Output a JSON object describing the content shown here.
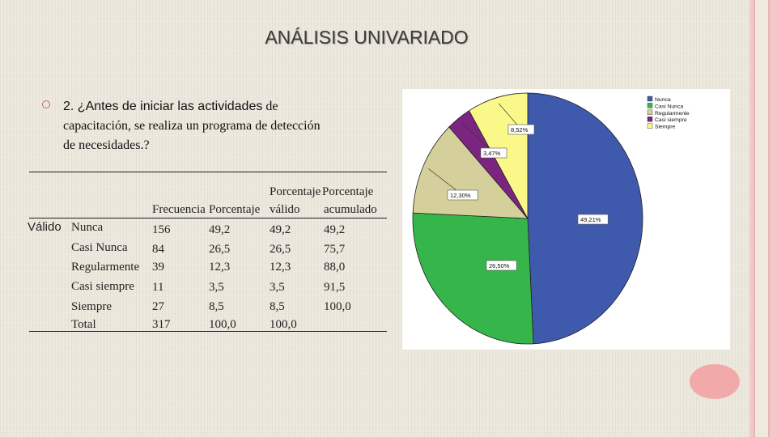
{
  "slide": {
    "title": "ANÁLISIS UNIVARIADO",
    "question_sans": "2. ¿Antes de iniciar las actividades",
    "question_serif_1": " de",
    "question_line2": "capacitación, se realiza un programa de detección",
    "question_line3": "de necesidades.?"
  },
  "table": {
    "headers": {
      "freq": "Frecuencia",
      "pct": "Porcentaje",
      "valid_1": "Porcentaje",
      "valid_2": "válido",
      "cum_1": "Porcentaje",
      "cum_2": "acumulado"
    },
    "group_label": "Válido",
    "rows": [
      {
        "label": "Nunca",
        "freq": "156",
        "pct": "49,2",
        "valid": "49,2",
        "cum": "49,2"
      },
      {
        "label": "Casi Nunca",
        "freq": "84",
        "pct": "26,5",
        "valid": "26,5",
        "cum": "75,7"
      },
      {
        "label": "Regularmente",
        "freq": "39",
        "pct": "12,3",
        "valid": "12,3",
        "cum": "88,0"
      },
      {
        "label": "Casi siempre",
        "freq": "11",
        "pct": "3,5",
        "valid": "3,5",
        "cum": "91,5"
      },
      {
        "label": "Siempre",
        "freq": "27",
        "pct": "8,5",
        "valid": "8,5",
        "cum": "100,0"
      },
      {
        "label": "Total",
        "freq": "317",
        "pct": "100,0",
        "valid": "100,0",
        "cum": ""
      }
    ]
  },
  "chart_data": {
    "type": "pie",
    "categories": [
      "Nunca",
      "Casi Nunca",
      "Regularmente",
      "Casi siempre",
      "Siempre"
    ],
    "values": [
      49.21,
      26.5,
      12.3,
      3.47,
      8.52
    ],
    "data_labels": [
      "49,21%",
      "26,50%",
      "12,30%",
      "3,47%",
      "8,52%"
    ],
    "colors": [
      "#3f59ad",
      "#36b64a",
      "#d5cf9c",
      "#7c2580",
      "#fbf88a"
    ],
    "legend_position": "top-right",
    "title": ""
  }
}
